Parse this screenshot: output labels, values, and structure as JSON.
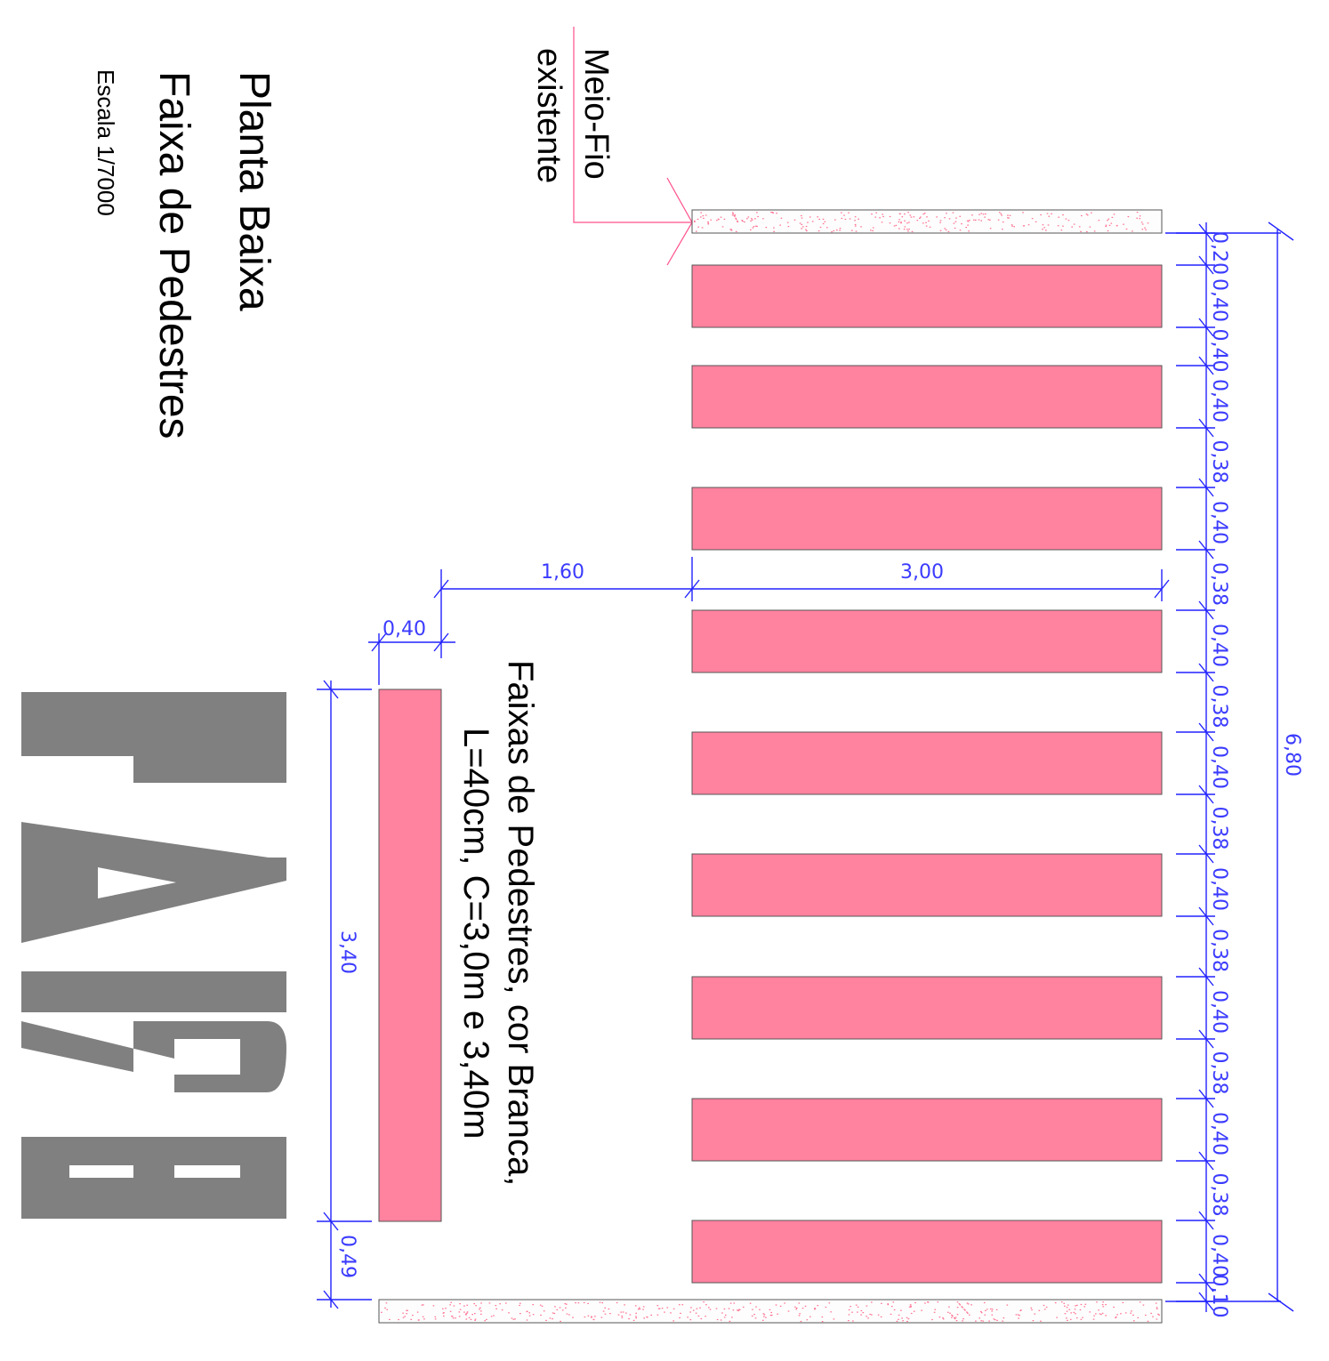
{
  "title": {
    "line1": "Planta Baixa",
    "line2": "Faixa de Pedestres",
    "scale": "Escala 1/7000"
  },
  "callout": {
    "line1": "Meio-Fio",
    "line2": "existente"
  },
  "note": {
    "line1": "Faixas de Pedestres, cor Branca,",
    "line2": "L=40cm, C=3,0m e 3,40m"
  },
  "road_marking": "PARE",
  "dimensions": {
    "total_width": "6,80",
    "stripe_length": "3,00",
    "setback": "1,60",
    "stop_line_width": "0,40",
    "stop_line_length": "3,40",
    "stop_line_offset": "0,49",
    "chain": [
      "0,20",
      "0,40",
      "0,40",
      "0,40",
      "0,38",
      "0,40",
      "0,38",
      "0,40",
      "0,38",
      "0,40",
      "0,38",
      "0,40",
      "0,38",
      "0,40",
      "0,38",
      "0,40",
      "0,38",
      "0,40",
      "0,10"
    ]
  },
  "colors": {
    "stripe_fill": "#ff829f",
    "dimension_line": "#2222ff",
    "dimension_text": "#3b3bff",
    "callout_line": "#ff4f8a",
    "pare_text": "#808080",
    "curb_speckle": "#ff6f8f"
  }
}
